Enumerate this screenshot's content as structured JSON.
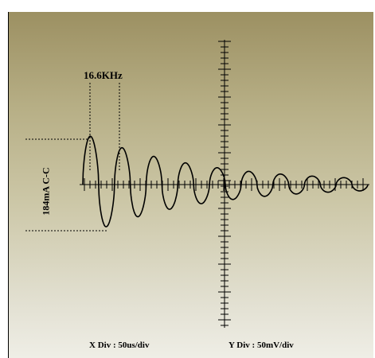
{
  "window": {
    "background": "#ffffff",
    "screen_gradient_top": "#9c9062",
    "screen_gradient_bottom": "#efeee6"
  },
  "labels": {
    "frequency": "16.6KHz",
    "amplitude": "184mA C-C",
    "x_div": "X Div : 50us/div",
    "y_div": "Y Div : 50mV/div"
  },
  "trace": {
    "color": "#000000",
    "type": "damped-sine",
    "visible_cycles": 9
  }
}
